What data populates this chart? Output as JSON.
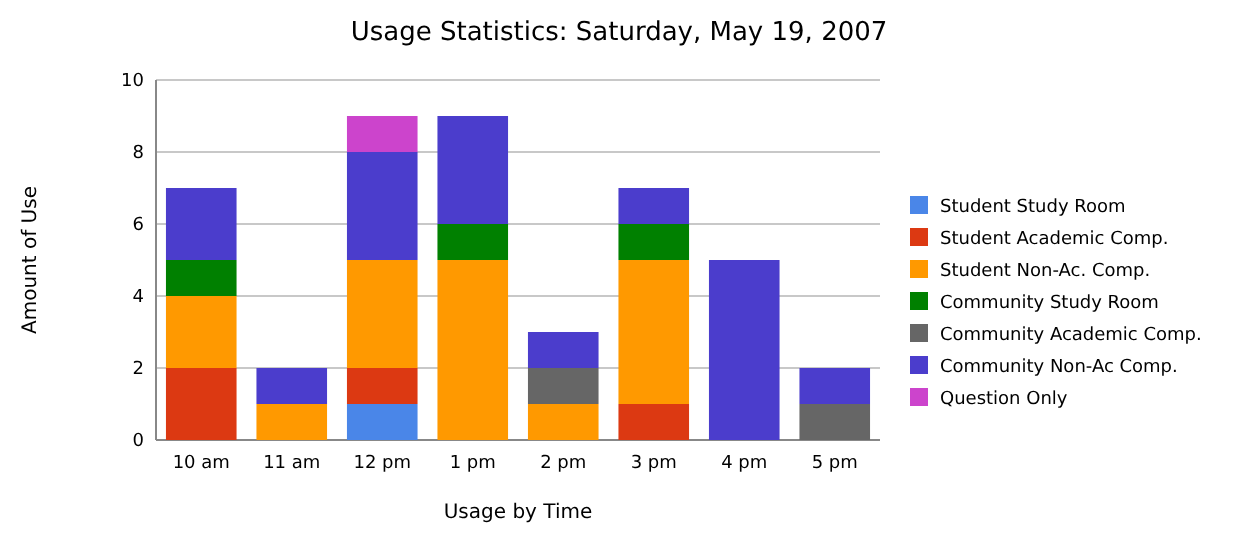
{
  "chart_data": {
    "type": "bar",
    "title": "Usage Statistics: Saturday, May 19, 2007",
    "xlabel": "Usage by Time",
    "ylabel": "Amount of Use",
    "categories": [
      "10 am",
      "11 am",
      "12 pm",
      "1 pm",
      "2 pm",
      "3 pm",
      "4 pm",
      "5 pm"
    ],
    "stacked": true,
    "ylim": [
      0,
      10
    ],
    "yticks": [
      0,
      2,
      4,
      6,
      8,
      10
    ],
    "grid": "y",
    "legend": "right",
    "series": [
      {
        "name": "Student Study Room",
        "color": "#4a86e8",
        "values": [
          0,
          0,
          1,
          0,
          0,
          0,
          0,
          0
        ]
      },
      {
        "name": "Student Academic Comp.",
        "color": "#dc3912",
        "values": [
          2,
          0,
          1,
          0,
          0,
          1,
          0,
          0
        ]
      },
      {
        "name": "Student Non-Ac. Comp.",
        "color": "#ff9900",
        "values": [
          2,
          1,
          3,
          5,
          1,
          4,
          0,
          0
        ]
      },
      {
        "name": "Community Study Room",
        "color": "#008000",
        "values": [
          1,
          0,
          0,
          1,
          0,
          1,
          0,
          0
        ]
      },
      {
        "name": "Community Academic Comp.",
        "color": "#666666",
        "values": [
          0,
          0,
          0,
          0,
          1,
          0,
          0,
          1
        ]
      },
      {
        "name": "Community Non-Ac Comp.",
        "color": "#4b3dcc",
        "values": [
          2,
          1,
          3,
          3,
          1,
          1,
          5,
          1
        ]
      },
      {
        "name": "Question Only",
        "color": "#cc44cc",
        "values": [
          0,
          0,
          1,
          0,
          0,
          0,
          0,
          0
        ]
      }
    ]
  }
}
